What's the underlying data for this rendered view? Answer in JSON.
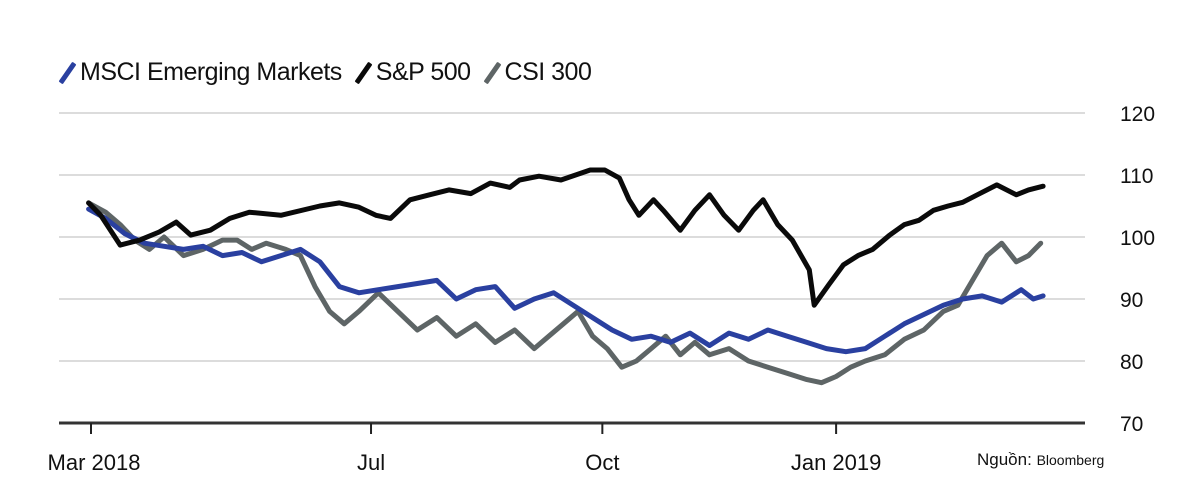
{
  "legend": [
    {
      "label": "MSCI Emerging Markets",
      "color": "#2a40a0"
    },
    {
      "label": "S&P 500",
      "color": "#0a0a0a"
    },
    {
      "label": "CSI 300",
      "color": "#5e6566"
    }
  ],
  "source": {
    "prefix": "Nguồn:",
    "name": "Bloomberg"
  },
  "chart_data": {
    "type": "line",
    "title": "",
    "xlabel": "",
    "ylabel": "",
    "ylim": [
      70,
      120
    ],
    "yticks": [
      "120",
      "110",
      "100",
      "90",
      "80",
      "70"
    ],
    "ytick_values": [
      120,
      110,
      100,
      90,
      80,
      70
    ],
    "xticks": [
      {
        "label": "Mar 2018",
        "day": 0
      },
      {
        "label": "Jul",
        "day": 115
      },
      {
        "label": "Oct",
        "day": 210
      },
      {
        "label": "Jan 2019",
        "day": 306
      }
    ],
    "x_unit": "days since 1 Mar 2018",
    "xlim": [
      -13,
      410
    ],
    "grid": true,
    "legend_position": "top-left",
    "series": [
      {
        "name": "S&P 500",
        "color": "#0a0a0a",
        "x": [
          -1,
          4,
          12,
          20,
          28,
          35,
          41,
          49,
          57,
          65,
          78,
          94,
          102,
          110,
          117,
          123,
          131,
          139,
          147,
          156,
          164,
          172,
          176,
          184,
          193,
          199,
          205,
          211,
          217,
          221,
          225,
          231,
          235,
          242,
          248,
          254,
          260,
          266,
          272,
          276,
          282,
          288,
          295,
          297,
          303,
          309,
          315,
          321,
          328,
          334,
          340,
          346,
          352,
          358,
          364,
          372,
          380,
          385,
          391
        ],
        "values": [
          105.5,
          103.5,
          98.7,
          99.5,
          100.8,
          102.4,
          100.3,
          101.1,
          103,
          104,
          103.5,
          105,
          105.5,
          104.8,
          103.5,
          103,
          106,
          106.8,
          107.6,
          107,
          108.7,
          108,
          109.2,
          109.8,
          109.2,
          110,
          110.8,
          110.8,
          109.5,
          106,
          103.5,
          106,
          104.3,
          101.1,
          104.3,
          106.8,
          103.5,
          101.1,
          104.3,
          106,
          102,
          99.5,
          94.7,
          89,
          92.3,
          95.5,
          97,
          98,
          100.3,
          102,
          102.7,
          104.3,
          105,
          105.6,
          106.8,
          108.4,
          106.8,
          107.6,
          108.2
        ]
      },
      {
        "name": "MSCI Emerging Markets",
        "color": "#2a40a0",
        "x": [
          -1,
          6,
          14,
          22,
          30,
          38,
          46,
          54,
          62,
          70,
          78,
          86,
          94,
          102,
          110,
          118,
          126,
          134,
          142,
          150,
          158,
          166,
          174,
          182,
          190,
          198,
          206,
          214,
          222,
          230,
          238,
          246,
          254,
          262,
          270,
          278,
          286,
          294,
          302,
          310,
          318,
          326,
          334,
          342,
          350,
          358,
          366,
          374,
          382,
          387,
          391
        ],
        "values": [
          104.5,
          103,
          100.5,
          99,
          98.5,
          98,
          98.5,
          97,
          97.5,
          96,
          97,
          98,
          96,
          92,
          91,
          91.5,
          92,
          92.5,
          93,
          90,
          91.5,
          92,
          88.5,
          90,
          91,
          89,
          87,
          85,
          83.5,
          84,
          83,
          84.5,
          82.5,
          84.5,
          83.5,
          85,
          84,
          83,
          82,
          81.5,
          82,
          84,
          86,
          87.5,
          89,
          90,
          90.5,
          89.5,
          91.5,
          90,
          90.5
        ]
      },
      {
        "name": "CSI 300",
        "color": "#5e6566",
        "x": [
          -1,
          6,
          12,
          18,
          24,
          30,
          38,
          46,
          54,
          60,
          66,
          72,
          80,
          86,
          92,
          98,
          104,
          110,
          118,
          126,
          134,
          142,
          150,
          158,
          166,
          174,
          182,
          188,
          194,
          200,
          206,
          212,
          218,
          224,
          230,
          236,
          242,
          248,
          254,
          262,
          270,
          278,
          286,
          294,
          300,
          306,
          312,
          318,
          326,
          334,
          342,
          350,
          356,
          362,
          368,
          374,
          380,
          385,
          390
        ],
        "values": [
          105.5,
          104,
          102,
          99.5,
          98,
          100,
          97,
          98,
          99.5,
          99.5,
          98,
          99,
          98,
          97,
          92,
          88,
          86,
          88,
          91,
          88,
          85,
          87,
          84,
          86,
          83,
          85,
          82,
          84,
          86,
          88,
          84,
          82,
          79,
          80,
          82,
          84,
          81,
          83,
          81,
          82,
          80,
          79,
          78,
          77,
          76.5,
          77.5,
          79,
          80,
          81,
          83.5,
          85,
          88,
          89,
          93,
          97,
          99,
          96,
          97,
          99
        ]
      }
    ]
  }
}
